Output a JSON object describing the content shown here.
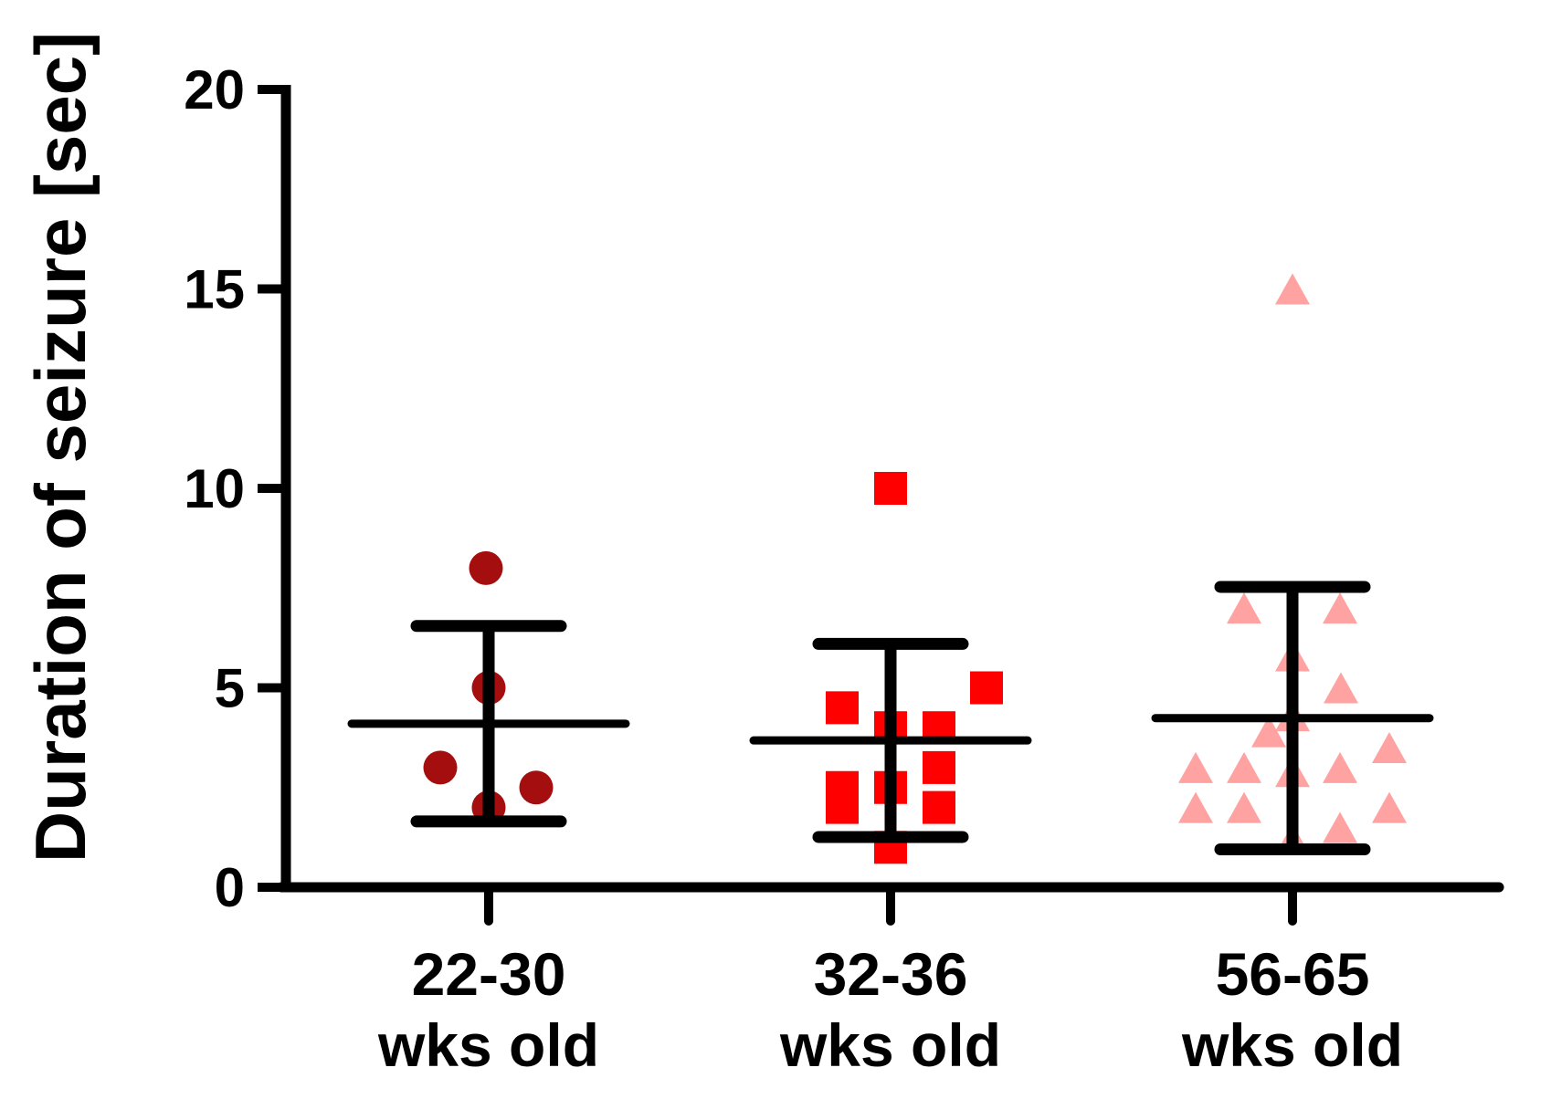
{
  "chart_data": {
    "type": "scatter",
    "subtype": "column-scatter-dot-plot-with-mean-sd",
    "title": "",
    "xlabel": "",
    "ylabel": "Duration of seizure [sec]",
    "ylim": [
      0,
      20
    ],
    "yticks": [
      0,
      5,
      10,
      15,
      20
    ],
    "grid": false,
    "legend": "none",
    "error_bar_type": "mean ± SD",
    "axis_color": "#000000",
    "groups": [
      {
        "label_line1": "22-30",
        "label_line2": "wks old",
        "marker": "circle",
        "color": "#A50E0E",
        "n": 5,
        "mean": 4.1,
        "sd": 2.45,
        "points": [
          {
            "v": 8,
            "dx": -3
          },
          {
            "v": 5,
            "dx": 0
          },
          {
            "v": 3,
            "dx": -53
          },
          {
            "v": 2.5,
            "dx": 52
          },
          {
            "v": 2,
            "dx": 0
          }
        ]
      },
      {
        "label_line1": "32-36",
        "label_line2": "wks old",
        "marker": "square",
        "color": "#FF0000",
        "n": 11,
        "mean": 3.68,
        "sd": 2.42,
        "points": [
          {
            "v": 10,
            "dx": 0
          },
          {
            "v": 5,
            "dx": 105
          },
          {
            "v": 4.5,
            "dx": -53
          },
          {
            "v": 4,
            "dx": 0
          },
          {
            "v": 4,
            "dx": 53
          },
          {
            "v": 3,
            "dx": 53
          },
          {
            "v": 2.5,
            "dx": -53
          },
          {
            "v": 2.5,
            "dx": 0
          },
          {
            "v": 2,
            "dx": -53
          },
          {
            "v": 2,
            "dx": 53
          },
          {
            "v": 1,
            "dx": 0
          }
        ]
      },
      {
        "label_line1": "56-65",
        "label_line2": "wks old",
        "marker": "triangle",
        "color": "#FFA2A2",
        "n": 17,
        "mean": 4.24,
        "sd": 3.29,
        "points": [
          {
            "v": 15,
            "dx": 0
          },
          {
            "v": 7,
            "dx": -53
          },
          {
            "v": 7,
            "dx": 52
          },
          {
            "v": 5.8,
            "dx": 0
          },
          {
            "v": 5,
            "dx": 53
          },
          {
            "v": 4.3,
            "dx": 0
          },
          {
            "v": 3.9,
            "dx": -26
          },
          {
            "v": 3.5,
            "dx": 106
          },
          {
            "v": 3,
            "dx": -106
          },
          {
            "v": 3,
            "dx": -53
          },
          {
            "v": 2.9,
            "dx": 0
          },
          {
            "v": 3,
            "dx": 52
          },
          {
            "v": 2,
            "dx": -106
          },
          {
            "v": 2,
            "dx": -53
          },
          {
            "v": 2,
            "dx": 106
          },
          {
            "v": 1.5,
            "dx": 52
          },
          {
            "v": 1.2,
            "dx": 0
          }
        ]
      }
    ]
  }
}
